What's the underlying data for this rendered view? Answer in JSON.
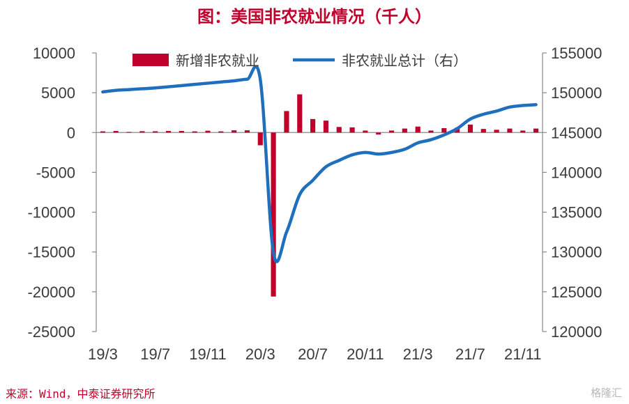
{
  "title": "图：美国非农就业情况（千人）",
  "source": "来源：Wind，中泰证券研究所",
  "watermark": "格隆汇",
  "chart_data": {
    "type": "bar+line",
    "x_tick_labels": [
      "19/3",
      "19/7",
      "19/11",
      "20/3",
      "20/7",
      "20/11",
      "21/3",
      "21/7",
      "21/11"
    ],
    "categories": [
      "19/3",
      "19/4",
      "19/5",
      "19/6",
      "19/7",
      "19/8",
      "19/9",
      "19/10",
      "19/11",
      "19/12",
      "20/1",
      "20/2",
      "20/3",
      "20/4",
      "20/5",
      "20/6",
      "20/7",
      "20/8",
      "20/9",
      "20/10",
      "20/11",
      "20/12",
      "21/1",
      "21/2",
      "21/3",
      "21/4",
      "21/5",
      "21/6",
      "21/7",
      "21/8",
      "21/9",
      "21/10",
      "21/11",
      "21/12"
    ],
    "y_left": {
      "ylim": [
        -25000,
        10000
      ],
      "ticks": [
        10000,
        5000,
        0,
        -5000,
        -10000,
        -15000,
        -20000,
        -25000
      ]
    },
    "y_right": {
      "ylim": [
        120000,
        155000
      ],
      "ticks": [
        155000,
        150000,
        145000,
        140000,
        135000,
        130000,
        125000,
        120000
      ]
    },
    "series": [
      {
        "name": "新增非农就业",
        "type": "bar",
        "axis": "left",
        "color": "#c0002b",
        "values": [
          150,
          200,
          80,
          170,
          160,
          200,
          200,
          150,
          230,
          150,
          280,
          280,
          -1600,
          -20600,
          2700,
          4800,
          1700,
          1500,
          700,
          650,
          250,
          -250,
          250,
          500,
          750,
          250,
          550,
          600,
          1000,
          450,
          350,
          500,
          250,
          500
        ]
      },
      {
        "name": "非农就业总计（右）",
        "type": "line",
        "axis": "right",
        "color": "#1f6fbd",
        "values": [
          150100,
          150300,
          150400,
          150500,
          150600,
          150750,
          150900,
          151050,
          151200,
          151350,
          151500,
          151700,
          151650,
          129900,
          132500,
          137200,
          139000,
          140700,
          141500,
          142200,
          142500,
          142300,
          142500,
          142900,
          143700,
          144100,
          144700,
          145500,
          146700,
          147300,
          147700,
          148200,
          148400,
          148500
        ]
      }
    ],
    "legend_position": "top",
    "grid": false
  }
}
